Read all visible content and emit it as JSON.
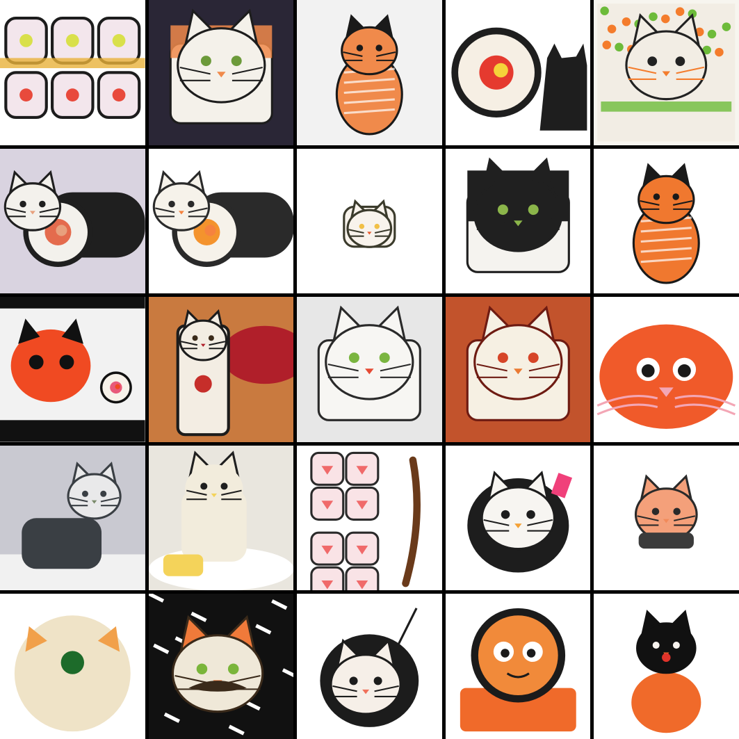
{
  "grid": {
    "columns": 5,
    "rows": 5,
    "border_color": "#000000"
  },
  "tiles": [
    {
      "subject": "sushi-roll-cat-faces-row",
      "bg": "#ffffff",
      "rice": "#f3e6ec",
      "nori": "#1c1c1c",
      "accent": "#e9b23a",
      "filling": "#e84a3c",
      "shape": "roll-grid"
    },
    {
      "subject": "sushi-cat-nigiri",
      "bg": "#2a2636",
      "rice": "#f4f1ea",
      "nori": "#1d1d1d",
      "accent": "#f08a4b",
      "filling": "#6c9a3a",
      "shape": "cat-block"
    },
    {
      "subject": "salmon-cat-sculpture",
      "bg": "#f2f2f2",
      "rice": "#ffffff",
      "nori": "#1a1a1a",
      "accent": "#f08a4b",
      "filling": "#f5a623",
      "shape": "salmon-cat"
    },
    {
      "subject": "maki-roll-with-black-cat",
      "bg": "#ffffff",
      "rice": "#f6efe4",
      "nori": "#1e1e1e",
      "accent": "#f5d33a",
      "filling": "#e53a2f",
      "shape": "roll-side-cat"
    },
    {
      "subject": "cat-face-rice-with-carrot-whiskers",
      "bg": "#f7f5ef",
      "rice": "#f2ede4",
      "nori": "#222222",
      "accent": "#f47c2c",
      "filling": "#6dbb3a",
      "shape": "flat-face"
    },
    {
      "subject": "lying-cat-roll",
      "bg": "#d9d3e0",
      "rice": "#f3f1ec",
      "nori": "#1f1f1f",
      "accent": "#e8a07d",
      "filling": "#e46b4d",
      "shape": "lying-roll"
    },
    {
      "subject": "salmon-roll-cat-body",
      "bg": "#ffffff",
      "rice": "#f6f2ea",
      "nori": "#2a2a2a",
      "accent": "#f6823e",
      "filling": "#f4932d",
      "shape": "big-roll"
    },
    {
      "subject": "tiny-cat-nigiri",
      "bg": "#ffffff",
      "rice": "#f8f3ec",
      "nori": "#3b3b2c",
      "accent": "#e85a2c",
      "filling": "#f1c046",
      "shape": "small-cat"
    },
    {
      "subject": "nori-cat-face-green-eyes",
      "bg": "#ffffff",
      "rice": "#f5f3ef",
      "nori": "#202020",
      "accent": "#8bb54a",
      "filling": "#e24a42",
      "shape": "nori-face"
    },
    {
      "subject": "sitting-cat-with-salmon",
      "bg": "#ffffff",
      "rice": "#f5efe6",
      "nori": "#1a1a1a",
      "accent": "#f0782f",
      "filling": "#ea5a24",
      "shape": "sitting-cat"
    },
    {
      "subject": "red-fish-cat-head",
      "bg": "#f2f2f2",
      "rice": "#f7f2ea",
      "nori": "#111111",
      "accent": "#f04a22",
      "filling": "#e85a7a",
      "shape": "red-head"
    },
    {
      "subject": "rice-cat-on-tuna",
      "bg": "#c97a3f",
      "rice": "#f3ede3",
      "nori": "#1c1c1c",
      "accent": "#b01f2a",
      "filling": "#c62e2a",
      "shape": "tall-cat"
    },
    {
      "subject": "white-cat-rice-red-eyes",
      "bg": "#e7e7e7",
      "rice": "#f7f6f3",
      "nori": "#2a2a2a",
      "accent": "#e54a34",
      "filling": "#7ab540",
      "shape": "white-cat"
    },
    {
      "subject": "cat-face-on-orange-plate",
      "bg": "#c2532c",
      "rice": "#f6f0e3",
      "nori": "#6e1b12",
      "accent": "#ea7a33",
      "filling": "#d64528",
      "shape": "plate-face"
    },
    {
      "subject": "roe-cat-big-eyes",
      "bg": "#ffffff",
      "rice": "#f5f0e6",
      "nori": "#1a1a1a",
      "accent": "#f05a2a",
      "filling": "#f3a6b5",
      "shape": "roe-face"
    },
    {
      "subject": "grey-cat-sculpture",
      "bg": "#c9c9d1",
      "rice": "#e9e9ea",
      "nori": "#3a3f44",
      "accent": "#7a8a6a",
      "filling": "#b5b5b5",
      "shape": "grey-cat"
    },
    {
      "subject": "rice-cat-with-tamago",
      "bg": "#e9e6de",
      "rice": "#f2ecdc",
      "nori": "#1f1f1f",
      "accent": "#f4d35a",
      "filling": "#e67a3a",
      "shape": "plate-cat"
    },
    {
      "subject": "pink-roll-slices-and-tail",
      "bg": "#ffffff",
      "rice": "#f9e3e6",
      "nori": "#2a2a2a",
      "accent": "#f06a6a",
      "filling": "#6a3a1a",
      "shape": "slices"
    },
    {
      "subject": "nori-wrapped-cat-head",
      "bg": "#ffffff",
      "rice": "#f7f5f1",
      "nori": "#1d1d1d",
      "accent": "#f5a236",
      "filling": "#f0407a",
      "shape": "wrapped-head"
    },
    {
      "subject": "small-salmon-cat",
      "bg": "#ffffff",
      "rice": "#f7f3ee",
      "nori": "#2a2a2a",
      "accent": "#f28a5a",
      "filling": "#f4a07a",
      "shape": "tiny-salmon"
    },
    {
      "subject": "rice-ball-cat-green-nose",
      "bg": "#ffffff",
      "rice": "#efe3c7",
      "nori": "#1a1a1a",
      "accent": "#f1a04a",
      "filling": "#1d6b2a",
      "shape": "rice-ball"
    },
    {
      "subject": "cat-face-with-mustache",
      "bg": "#111111",
      "rice": "#efe8d8",
      "nori": "#3a2a1a",
      "accent": "#f07a3a",
      "filling": "#7ab53a",
      "shape": "mustache-cat"
    },
    {
      "subject": "wrapped-cat-pink-face",
      "bg": "#ffffff",
      "rice": "#f6efe8",
      "nori": "#1c1c1c",
      "accent": "#f0705a",
      "filling": "#f08070",
      "shape": "roll-head"
    },
    {
      "subject": "nori-ring-cat-on-salmon",
      "bg": "#ffffff",
      "rice": "#f2e8da",
      "nori": "#1b1b1b",
      "accent": "#f06a2a",
      "filling": "#f18a3a",
      "shape": "ring-face"
    },
    {
      "subject": "black-cat-on-salmon-body",
      "bg": "#ffffff",
      "rice": "#f7f3ee",
      "nori": "#111111",
      "accent": "#f06a2a",
      "filling": "#e0332a",
      "shape": "black-cat"
    }
  ]
}
